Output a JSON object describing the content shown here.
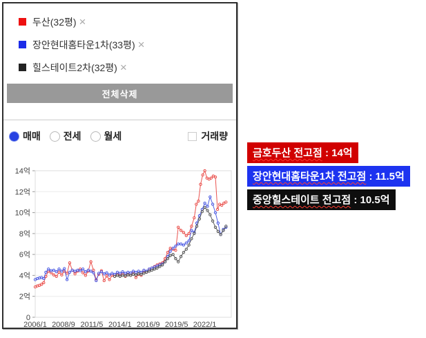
{
  "panel": {
    "legend": [
      {
        "name": "두산(32평)",
        "color": "#ee1111"
      },
      {
        "name": "장안현대홈타운1차(33평)",
        "color": "#1c2ce8"
      },
      {
        "name": "힐스테이트2차(32평)",
        "color": "#222222"
      }
    ],
    "remove_symbol": "×",
    "delete_all_label": "전체삭제",
    "trade_type_options": [
      {
        "label": "매매",
        "selected": true
      },
      {
        "label": "전세",
        "selected": false
      },
      {
        "label": "월세",
        "selected": false
      }
    ],
    "volume_checkbox_label": "거래량",
    "volume_checked": false
  },
  "peak_labels": [
    {
      "underlined": "금호두산 전고점",
      "value": " : 14억",
      "bg": "#d10000"
    },
    {
      "underlined": "장안현대홈타운1차 전고점",
      "value": " : 11.5억",
      "bg": "#1d33f0"
    },
    {
      "underlined": "중앙힐스테이트 전고점",
      "value": " : 10.5억",
      "bg": "#0e0e0e"
    }
  ],
  "chart_data": {
    "type": "line",
    "title": "",
    "xlabel": "",
    "ylabel": "",
    "x_unit": "year",
    "y_unit_suffix": "억",
    "grid": true,
    "legend_position": "none",
    "xlim": [
      2006.0,
      2024.5
    ],
    "ylim": [
      0,
      14
    ],
    "y_tick_values": [
      0,
      2,
      4,
      6,
      8,
      10,
      12,
      14
    ],
    "y_tick_labels": [
      "0",
      "2억",
      "4억",
      "6억",
      "8억",
      "10억",
      "12억",
      "14억"
    ],
    "x_tick_values": [
      2006.0,
      2008.6667,
      2011.3333,
      2014.0,
      2016.6667,
      2019.3333,
      2022.0
    ],
    "x_tick_labels": [
      "2006/1",
      "2008/9",
      "2011/5",
      "2014/1",
      "2016/9",
      "2019/5",
      "2022/1"
    ],
    "series": [
      {
        "name": "두산(32평)",
        "color": "#e8403c",
        "peak": 14,
        "points": [
          [
            2006.0,
            2.9
          ],
          [
            2006.2,
            3.0
          ],
          [
            2006.4,
            3.05
          ],
          [
            2006.6,
            3.15
          ],
          [
            2006.8,
            3.3
          ],
          [
            2007.0,
            3.9
          ],
          [
            2007.25,
            4.4
          ],
          [
            2007.5,
            4.25
          ],
          [
            2007.75,
            4.05
          ],
          [
            2008.0,
            3.9
          ],
          [
            2008.25,
            4.3
          ],
          [
            2008.5,
            4.05
          ],
          [
            2008.75,
            4.4
          ],
          [
            2009.0,
            4.2
          ],
          [
            2009.25,
            5.2
          ],
          [
            2009.5,
            4.5
          ],
          [
            2009.75,
            4.15
          ],
          [
            2010.0,
            4.4
          ],
          [
            2010.25,
            4.6
          ],
          [
            2010.5,
            4.25
          ],
          [
            2010.75,
            4.0
          ],
          [
            2011.0,
            4.4
          ],
          [
            2011.25,
            5.3
          ],
          [
            2011.5,
            4.5
          ],
          [
            2011.75,
            3.6
          ],
          [
            2012.0,
            4.1
          ],
          [
            2012.25,
            4.45
          ],
          [
            2012.5,
            3.5
          ],
          [
            2012.75,
            3.95
          ],
          [
            2013.0,
            3.6
          ],
          [
            2013.25,
            4.0
          ],
          [
            2013.5,
            3.9
          ],
          [
            2013.75,
            4.1
          ],
          [
            2014.0,
            4.0
          ],
          [
            2014.25,
            4.2
          ],
          [
            2014.5,
            3.9
          ],
          [
            2014.75,
            4.1
          ],
          [
            2015.0,
            4.0
          ],
          [
            2015.25,
            4.3
          ],
          [
            2015.5,
            3.8
          ],
          [
            2015.75,
            4.1
          ],
          [
            2016.0,
            4.0
          ],
          [
            2016.25,
            4.4
          ],
          [
            2016.5,
            4.3
          ],
          [
            2016.75,
            4.55
          ],
          [
            2017.0,
            4.7
          ],
          [
            2017.25,
            4.85
          ],
          [
            2017.5,
            5.0
          ],
          [
            2017.75,
            5.1
          ],
          [
            2018.0,
            5.2
          ],
          [
            2018.25,
            5.6
          ],
          [
            2018.5,
            6.2
          ],
          [
            2018.75,
            6.6
          ],
          [
            2019.0,
            6.5
          ],
          [
            2019.25,
            6.4
          ],
          [
            2019.5,
            8.6
          ],
          [
            2019.75,
            8.3
          ],
          [
            2020.0,
            8.1
          ],
          [
            2020.25,
            7.8
          ],
          [
            2020.5,
            8.0
          ],
          [
            2020.75,
            8.7
          ],
          [
            2021.0,
            9.5
          ],
          [
            2021.2,
            10.8
          ],
          [
            2021.4,
            11.1
          ],
          [
            2021.6,
            12.7
          ],
          [
            2021.8,
            13.6
          ],
          [
            2022.0,
            14.0
          ],
          [
            2022.2,
            13.3
          ],
          [
            2022.4,
            13.2
          ],
          [
            2022.6,
            13.3
          ],
          [
            2022.8,
            13.5
          ],
          [
            2023.0,
            13.4
          ],
          [
            2023.2,
            10.3
          ],
          [
            2023.4,
            10.8
          ],
          [
            2023.6,
            10.7
          ],
          [
            2023.8,
            10.9
          ],
          [
            2024.0,
            11.0
          ]
        ]
      },
      {
        "name": "장안현대홈타운1차(33평)",
        "color": "#3c4ce0",
        "peak": 11.5,
        "points": [
          [
            2006.0,
            3.6
          ],
          [
            2006.2,
            3.7
          ],
          [
            2006.4,
            3.75
          ],
          [
            2006.6,
            3.8
          ],
          [
            2006.8,
            3.7
          ],
          [
            2007.0,
            4.3
          ],
          [
            2007.25,
            4.6
          ],
          [
            2007.5,
            4.45
          ],
          [
            2007.75,
            4.5
          ],
          [
            2008.0,
            4.35
          ],
          [
            2008.25,
            4.6
          ],
          [
            2008.5,
            4.4
          ],
          [
            2008.75,
            4.65
          ],
          [
            2009.0,
            3.6
          ],
          [
            2009.25,
            4.3
          ],
          [
            2009.5,
            4.5
          ],
          [
            2009.75,
            4.4
          ],
          [
            2010.0,
            4.5
          ],
          [
            2010.25,
            4.45
          ],
          [
            2010.5,
            4.6
          ],
          [
            2010.75,
            4.35
          ],
          [
            2011.0,
            4.5
          ],
          [
            2011.25,
            4.4
          ],
          [
            2011.5,
            4.25
          ],
          [
            2011.75,
            3.5
          ],
          [
            2012.0,
            4.2
          ],
          [
            2012.25,
            4.35
          ],
          [
            2012.5,
            4.15
          ],
          [
            2012.75,
            4.25
          ],
          [
            2013.0,
            4.05
          ],
          [
            2013.25,
            4.2
          ],
          [
            2013.5,
            4.1
          ],
          [
            2013.75,
            4.3
          ],
          [
            2014.0,
            4.2
          ],
          [
            2014.25,
            4.35
          ],
          [
            2014.5,
            4.2
          ],
          [
            2014.75,
            4.3
          ],
          [
            2015.0,
            4.25
          ],
          [
            2015.25,
            4.4
          ],
          [
            2015.5,
            4.3
          ],
          [
            2015.75,
            4.4
          ],
          [
            2016.0,
            4.3
          ],
          [
            2016.25,
            4.5
          ],
          [
            2016.5,
            4.4
          ],
          [
            2016.75,
            4.6
          ],
          [
            2017.0,
            4.7
          ],
          [
            2017.25,
            4.8
          ],
          [
            2017.5,
            4.9
          ],
          [
            2017.75,
            5.0
          ],
          [
            2018.0,
            5.1
          ],
          [
            2018.25,
            5.3
          ],
          [
            2018.5,
            5.8
          ],
          [
            2018.75,
            6.3
          ],
          [
            2019.0,
            6.6
          ],
          [
            2019.25,
            6.8
          ],
          [
            2019.5,
            7.0
          ],
          [
            2019.75,
            7.0
          ],
          [
            2020.0,
            6.9
          ],
          [
            2020.25,
            7.1
          ],
          [
            2020.5,
            7.3
          ],
          [
            2020.75,
            8.3
          ],
          [
            2021.0,
            8.1
          ],
          [
            2021.25,
            9.0
          ],
          [
            2021.5,
            9.7
          ],
          [
            2021.75,
            10.3
          ],
          [
            2022.0,
            10.9
          ],
          [
            2022.25,
            10.6
          ],
          [
            2022.5,
            11.5
          ],
          [
            2022.75,
            10.8
          ],
          [
            2023.0,
            10.0
          ],
          [
            2023.25,
            9.0
          ],
          [
            2023.5,
            7.9
          ],
          [
            2023.75,
            8.4
          ],
          [
            2024.0,
            8.6
          ]
        ]
      },
      {
        "name": "힐스테이트2차(32평)",
        "color": "#4a4a4a",
        "peak": 10.5,
        "points": [
          [
            2013.5,
            3.9
          ],
          [
            2013.75,
            4.0
          ],
          [
            2014.0,
            3.9
          ],
          [
            2014.25,
            4.0
          ],
          [
            2014.5,
            3.95
          ],
          [
            2014.75,
            4.05
          ],
          [
            2015.0,
            4.0
          ],
          [
            2015.25,
            4.1
          ],
          [
            2015.5,
            4.05
          ],
          [
            2015.75,
            4.15
          ],
          [
            2016.0,
            4.1
          ],
          [
            2016.25,
            4.2
          ],
          [
            2016.5,
            4.3
          ],
          [
            2016.75,
            4.4
          ],
          [
            2017.0,
            4.5
          ],
          [
            2017.25,
            4.6
          ],
          [
            2017.5,
            4.7
          ],
          [
            2017.75,
            4.85
          ],
          [
            2018.0,
            5.0
          ],
          [
            2018.25,
            5.3
          ],
          [
            2018.5,
            5.6
          ],
          [
            2018.75,
            5.9
          ],
          [
            2019.0,
            6.0
          ],
          [
            2019.25,
            5.6
          ],
          [
            2019.5,
            5.3
          ],
          [
            2019.75,
            5.8
          ],
          [
            2020.0,
            6.2
          ],
          [
            2020.25,
            6.5
          ],
          [
            2020.5,
            6.9
          ],
          [
            2020.75,
            7.5
          ],
          [
            2021.0,
            8.0
          ],
          [
            2021.25,
            8.7
          ],
          [
            2021.5,
            9.4
          ],
          [
            2021.75,
            10.1
          ],
          [
            2022.0,
            10.5
          ],
          [
            2022.25,
            10.2
          ],
          [
            2022.5,
            9.8
          ],
          [
            2022.75,
            9.2
          ],
          [
            2023.0,
            8.6
          ],
          [
            2023.25,
            8.2
          ],
          [
            2023.5,
            7.9
          ],
          [
            2023.75,
            8.3
          ],
          [
            2024.0,
            8.7
          ]
        ]
      }
    ]
  }
}
